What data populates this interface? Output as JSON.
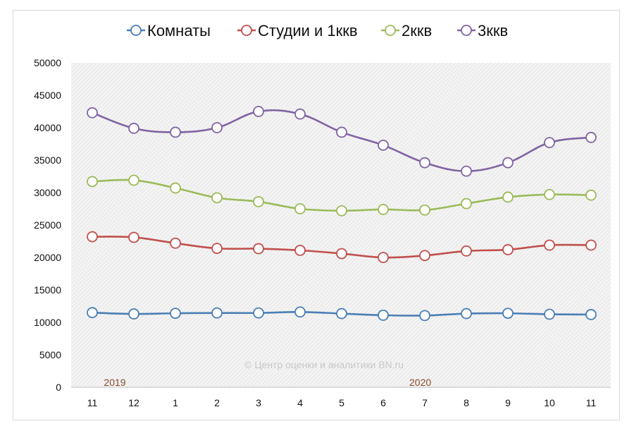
{
  "chart_data": {
    "type": "line",
    "categories": [
      "11",
      "12",
      "1",
      "2",
      "3",
      "4",
      "5",
      "6",
      "7",
      "8",
      "9",
      "10",
      "11"
    ],
    "year_labels": [
      {
        "text": "2019",
        "category_index": 0
      },
      {
        "text": "2020",
        "category_index": 8
      }
    ],
    "watermark": "© Центр оценки и аналитики BN.ru",
    "ylim": [
      0,
      50000
    ],
    "yticks": [
      "0",
      "5000",
      "10000",
      "15000",
      "20000",
      "25000",
      "30000",
      "35000",
      "40000",
      "45000",
      "50000"
    ],
    "legend_position": "top",
    "grid": false,
    "plot_background": "hatched light gray",
    "series": [
      {
        "name": "Комнаты",
        "color": "#4a7eb5",
        "values": [
          11500,
          11300,
          11400,
          11450,
          11450,
          11600,
          11350,
          11100,
          11050,
          11350,
          11400,
          11250,
          11200
        ]
      },
      {
        "name": "Студии и 1ккв",
        "color": "#c0504d",
        "values": [
          23200,
          23100,
          22200,
          21400,
          21350,
          21100,
          20600,
          20000,
          20300,
          21000,
          21200,
          21900,
          21900
        ]
      },
      {
        "name": "2ккв",
        "color": "#9bbb59",
        "values": [
          31700,
          31900,
          30700,
          29200,
          28600,
          27500,
          27200,
          27400,
          27300,
          28300,
          29300,
          29700,
          29600
        ]
      },
      {
        "name": "3ккв",
        "color": "#8064a2",
        "values": [
          42300,
          39900,
          39300,
          40000,
          42500,
          42100,
          39300,
          37300,
          34600,
          33300,
          34600,
          37700,
          38500
        ]
      }
    ]
  }
}
